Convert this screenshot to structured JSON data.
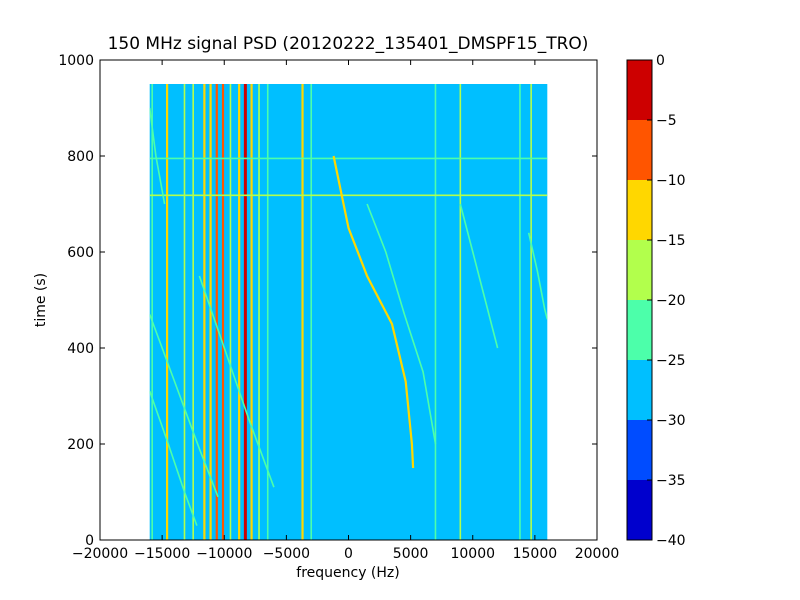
{
  "chart_data": {
    "type": "heatmap",
    "title": "150 MHz signal PSD (20120222_135401_DMSPF15_TRO)",
    "xlabel": "frequency (Hz)",
    "ylabel": "time (s)",
    "xlim": [
      -20000,
      20000
    ],
    "ylim": [
      0,
      1000
    ],
    "xticks": [
      -20000,
      -15000,
      -10000,
      -5000,
      0,
      5000,
      10000,
      15000,
      20000
    ],
    "xtick_labels": [
      "−20000",
      "−15000",
      "−10000",
      "−5000",
      "0",
      "5000",
      "10000",
      "15000",
      "20000"
    ],
    "yticks": [
      0,
      200,
      400,
      600,
      800,
      1000
    ],
    "ytick_labels": [
      "0",
      "200",
      "400",
      "600",
      "800",
      "1000"
    ],
    "data_extent": {
      "f_min": -16000,
      "f_max": 16000,
      "t_min": 0,
      "t_max": 950
    },
    "background_level": -28,
    "colorbar": {
      "levels": [
        -40,
        -35,
        -30,
        -25,
        -20,
        -15,
        -10,
        -5,
        0
      ],
      "tick_labels": [
        "−40",
        "−35",
        "−30",
        "−25",
        "−20",
        "−15",
        "−10",
        "−5",
        "0"
      ],
      "colors": [
        "#0000cd",
        "#004cff",
        "#00bfff",
        "#4cffaa",
        "#b2ff4c",
        "#ffd700",
        "#ff5500",
        "#cd0000"
      ]
    },
    "vertical_lines": [
      {
        "freq": -8300,
        "level": -3
      },
      {
        "freq": -8800,
        "level": -12
      },
      {
        "freq": -7800,
        "level": -12
      },
      {
        "freq": -10100,
        "level": -10
      },
      {
        "freq": -10600,
        "level": -10
      },
      {
        "freq": -11100,
        "level": -12
      },
      {
        "freq": -11600,
        "level": -14
      },
      {
        "freq": -9500,
        "level": -18
      },
      {
        "freq": -7200,
        "level": -18
      },
      {
        "freq": -6500,
        "level": -22
      },
      {
        "freq": -12500,
        "level": -16
      },
      {
        "freq": -14600,
        "level": -14
      },
      {
        "freq": -13200,
        "level": -20
      },
      {
        "freq": -3700,
        "level": -14
      },
      {
        "freq": -15800,
        "level": -22
      },
      {
        "freq": 9000,
        "level": -18
      },
      {
        "freq": 7000,
        "level": -22
      },
      {
        "freq": 14700,
        "level": -18
      },
      {
        "freq": 13800,
        "level": -22
      },
      {
        "freq": -3000,
        "level": -23
      }
    ],
    "horizontal_lines": [
      {
        "time": 795,
        "level": -22
      },
      {
        "time": 718,
        "level": -20
      }
    ],
    "curves": [
      {
        "level": -15,
        "points": [
          [
            -1200,
            800
          ],
          [
            0,
            650
          ],
          [
            1500,
            550
          ],
          [
            3500,
            450
          ],
          [
            4600,
            330
          ],
          [
            5100,
            200
          ],
          [
            5200,
            150
          ]
        ]
      },
      {
        "level": -22,
        "points": [
          [
            1500,
            700
          ],
          [
            3000,
            600
          ],
          [
            4500,
            470
          ],
          [
            6000,
            350
          ],
          [
            7000,
            200
          ]
        ]
      },
      {
        "level": -23,
        "points": [
          [
            -16000,
            470
          ],
          [
            -14000,
            330
          ],
          [
            -12000,
            190
          ],
          [
            -10500,
            90
          ]
        ]
      },
      {
        "level": -23,
        "points": [
          [
            -16000,
            310
          ],
          [
            -14500,
            200
          ],
          [
            -13200,
            100
          ],
          [
            -12200,
            30
          ]
        ]
      },
      {
        "level": -23,
        "points": [
          [
            -12000,
            550
          ],
          [
            -10000,
            400
          ],
          [
            -8000,
            250
          ],
          [
            -6000,
            110
          ]
        ]
      },
      {
        "level": -23,
        "points": [
          [
            14500,
            640
          ],
          [
            15200,
            560
          ],
          [
            15800,
            480
          ],
          [
            16000,
            460
          ]
        ]
      },
      {
        "level": -23,
        "points": [
          [
            9000,
            700
          ],
          [
            10000,
            600
          ],
          [
            11000,
            500
          ],
          [
            12000,
            400
          ]
        ]
      },
      {
        "level": -24,
        "points": [
          [
            -16000,
            900
          ],
          [
            -15500,
            800
          ],
          [
            -14800,
            700
          ]
        ]
      }
    ]
  }
}
